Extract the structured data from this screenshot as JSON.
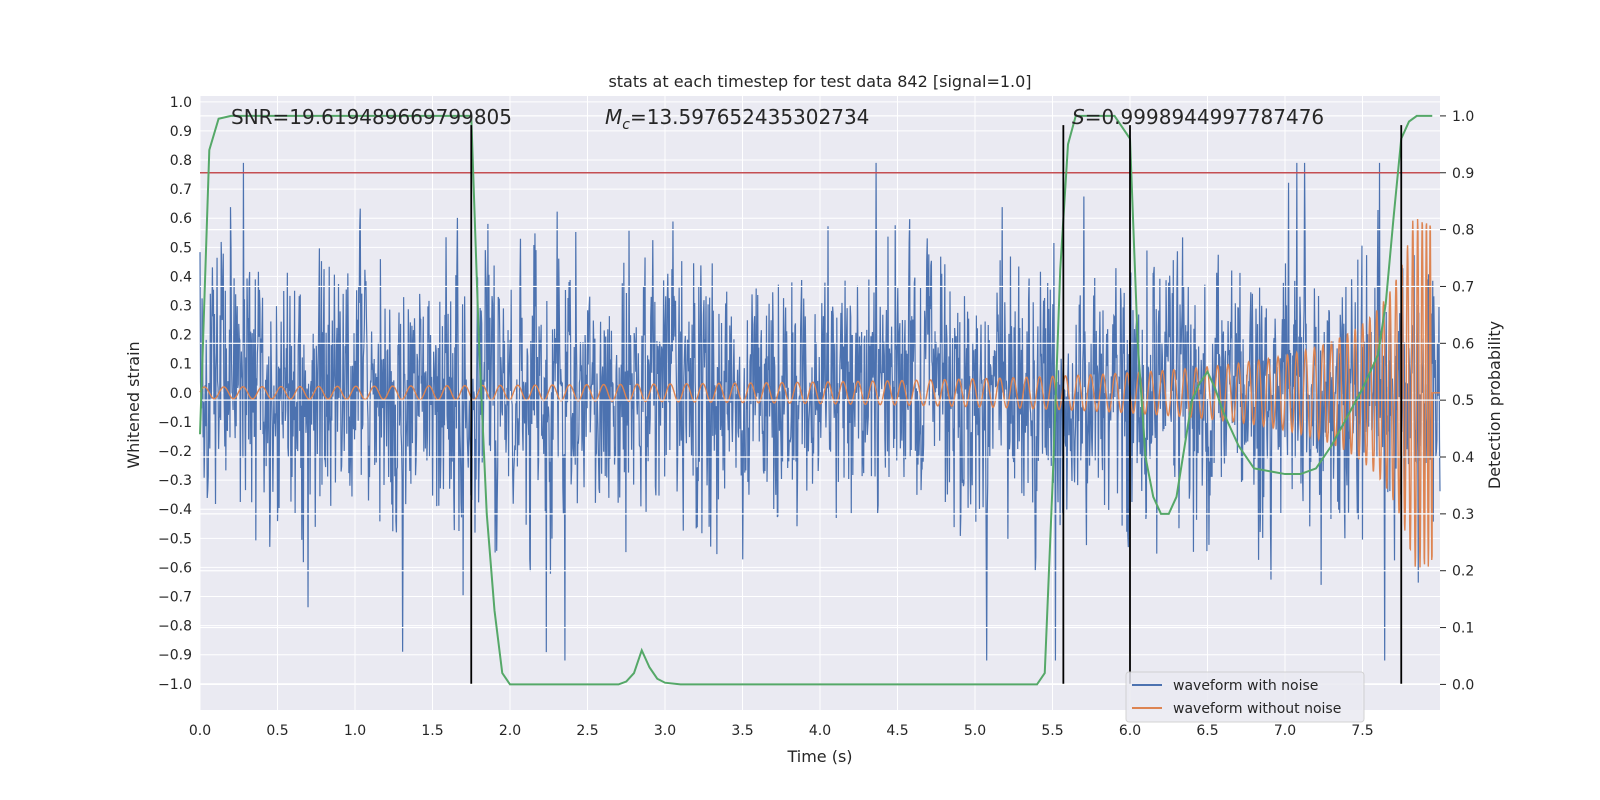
{
  "chart_data": {
    "type": "line",
    "title": "stats at each timestep for test data 842 [signal=1.0]",
    "xlabel": "Time (s)",
    "ylabel": "Whitened strain",
    "y2label": "Detection probability",
    "xlim": [
      0.0,
      8.0
    ],
    "ylim": [
      -1.09,
      1.02
    ],
    "y2lim": [
      -0.045,
      1.035
    ],
    "x_ticks": [
      "0.0",
      "0.5",
      "1.0",
      "1.5",
      "2.0",
      "2.5",
      "3.0",
      "3.5",
      "4.0",
      "4.5",
      "5.0",
      "5.5",
      "6.0",
      "6.5",
      "7.0",
      "7.5"
    ],
    "x_tick_values": [
      0,
      0.5,
      1,
      1.5,
      2,
      2.5,
      3,
      3.5,
      4,
      4.5,
      5,
      5.5,
      6,
      6.5,
      7,
      7.5
    ],
    "y_ticks": [
      "1.0",
      "0.9",
      "0.8",
      "0.7",
      "0.6",
      "0.5",
      "0.4",
      "0.3",
      "0.2",
      "0.1",
      "0.0",
      "−0.1",
      "−0.2",
      "−0.3",
      "−0.4",
      "−0.5",
      "−0.6",
      "−0.7",
      "−0.8",
      "−0.9",
      "−1.0"
    ],
    "y_tick_values": [
      1.0,
      0.9,
      0.8,
      0.7,
      0.6,
      0.5,
      0.4,
      0.3,
      0.2,
      0.1,
      0.0,
      -0.1,
      -0.2,
      -0.3,
      -0.4,
      -0.5,
      -0.6,
      -0.7,
      -0.8,
      -0.9,
      -1.0
    ],
    "y2_ticks": [
      "1.0",
      "0.9",
      "0.8",
      "0.7",
      "0.6",
      "0.5",
      "0.4",
      "0.3",
      "0.2",
      "0.1",
      "0.0"
    ],
    "y2_tick_values": [
      1.0,
      0.9,
      0.8,
      0.7,
      0.6,
      0.5,
      0.4,
      0.3,
      0.2,
      0.1,
      0.0
    ],
    "annotations": {
      "snr": "SNR=19.619489669799805",
      "mc_symbol": "M",
      "mc_sub": "c",
      "mc_value": "=13.597652435302734",
      "s_symbol": "S",
      "s_value": "=0.9998944997787476"
    },
    "threshold": {
      "axis": "y2",
      "value": 0.9,
      "color": "#c44e52"
    },
    "vertical_lines": [
      1.75,
      5.57,
      6.0,
      7.75
    ],
    "vertical_line_range": [
      -1.0,
      0.92
    ],
    "grid": true,
    "legend_position": "lower-right",
    "series": [
      {
        "name": "waveform with noise",
        "color": "#4c72b0",
        "envelope_typical": 0.33,
        "envelope_max": 0.79,
        "envelope_min": -0.92
      },
      {
        "name": "waveform without noise",
        "color": "#dd8452",
        "chirp_start_amp": 0.02,
        "chirp_peak_amp": 0.6,
        "chirp_peak_time": 7.93
      },
      {
        "axis": "y2",
        "color": "#55a868",
        "x": [
          0.0,
          0.06,
          0.12,
          0.2,
          0.5,
          1.0,
          1.5,
          1.75,
          1.8,
          1.85,
          1.9,
          1.95,
          2.0,
          2.2,
          2.5,
          2.7,
          2.75,
          2.8,
          2.85,
          2.9,
          2.95,
          3.0,
          3.1,
          3.5,
          4.0,
          4.5,
          5.0,
          5.4,
          5.45,
          5.5,
          5.55,
          5.6,
          5.65,
          5.7,
          5.9,
          6.0,
          6.05,
          6.1,
          6.15,
          6.2,
          6.25,
          6.3,
          6.4,
          6.45,
          6.5,
          6.55,
          6.6,
          6.7,
          6.8,
          7.0,
          7.1,
          7.2,
          7.3,
          7.4,
          7.5,
          7.6,
          7.65,
          7.7,
          7.75,
          7.8,
          7.85,
          7.9,
          7.95
        ],
        "y": [
          0.44,
          0.94,
          0.995,
          1.0,
          1.0,
          1.0,
          1.0,
          1.0,
          0.6,
          0.3,
          0.13,
          0.02,
          0.0,
          0.0,
          0.0,
          0.0,
          0.005,
          0.02,
          0.06,
          0.03,
          0.01,
          0.003,
          0.0,
          0.0,
          0.0,
          0.0,
          0.0,
          0.0,
          0.02,
          0.35,
          0.73,
          0.95,
          1.0,
          1.0,
          1.0,
          0.96,
          0.6,
          0.4,
          0.33,
          0.3,
          0.3,
          0.33,
          0.5,
          0.53,
          0.55,
          0.52,
          0.48,
          0.42,
          0.38,
          0.37,
          0.37,
          0.38,
          0.42,
          0.47,
          0.52,
          0.58,
          0.67,
          0.82,
          0.96,
          0.99,
          1.0,
          1.0,
          1.0
        ]
      }
    ]
  }
}
